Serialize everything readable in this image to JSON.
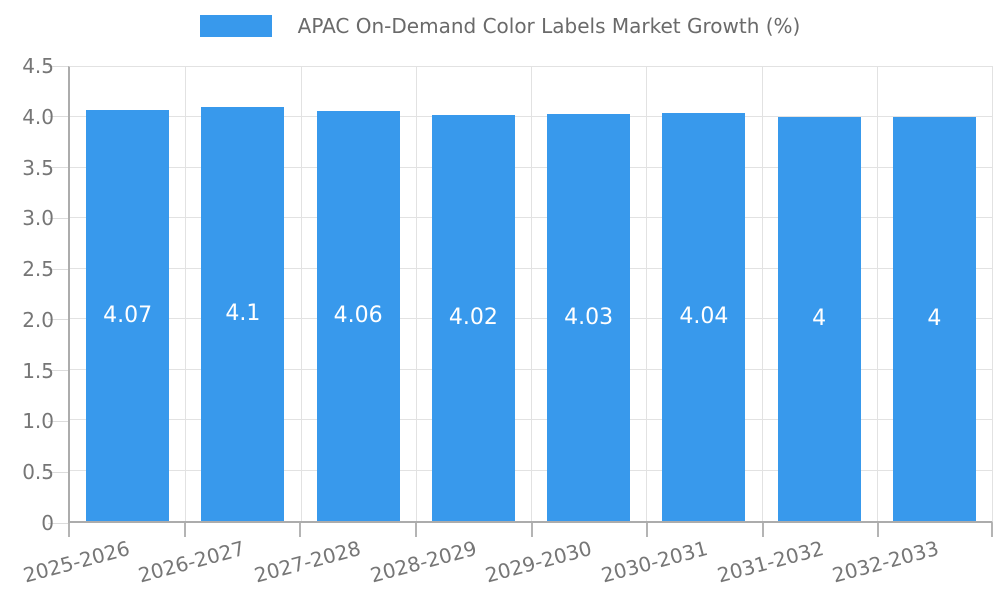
{
  "chart_data": {
    "type": "bar",
    "title": "APAC On-Demand Color Labels Market Growth (%)",
    "legend": {
      "position": "top",
      "label": "APAC On-Demand Color Labels Market Growth (%)"
    },
    "categories": [
      "2025-2026",
      "2026-2027",
      "2027-2028",
      "2028-2029",
      "2029-2030",
      "2030-2031",
      "2031-2032",
      "2032-2033"
    ],
    "values": [
      4.07,
      4.1,
      4.06,
      4.02,
      4.03,
      4.04,
      4,
      4
    ],
    "value_labels": [
      "4.07",
      "4.1",
      "4.06",
      "4.02",
      "4.03",
      "4.04",
      "4",
      "4"
    ],
    "xlabel": "",
    "ylabel": "",
    "ylim": [
      0,
      4.5
    ],
    "y_tick_step": 0.5,
    "y_tick_labels": [
      "0",
      "0.5",
      "1.0",
      "1.5",
      "2.0",
      "2.5",
      "3.0",
      "3.5",
      "4.0",
      "4.5"
    ],
    "x_tick_rotation_deg": -15,
    "grid": true,
    "bar_color": "#3899ec",
    "bar_label_color": "#ffffff",
    "axis_text_color": "#767676",
    "title_color": "#6a6a6a",
    "gridline_color": "#e2e2e2",
    "axis_line_color": "#acacac",
    "background_color": "#ffffff"
  }
}
